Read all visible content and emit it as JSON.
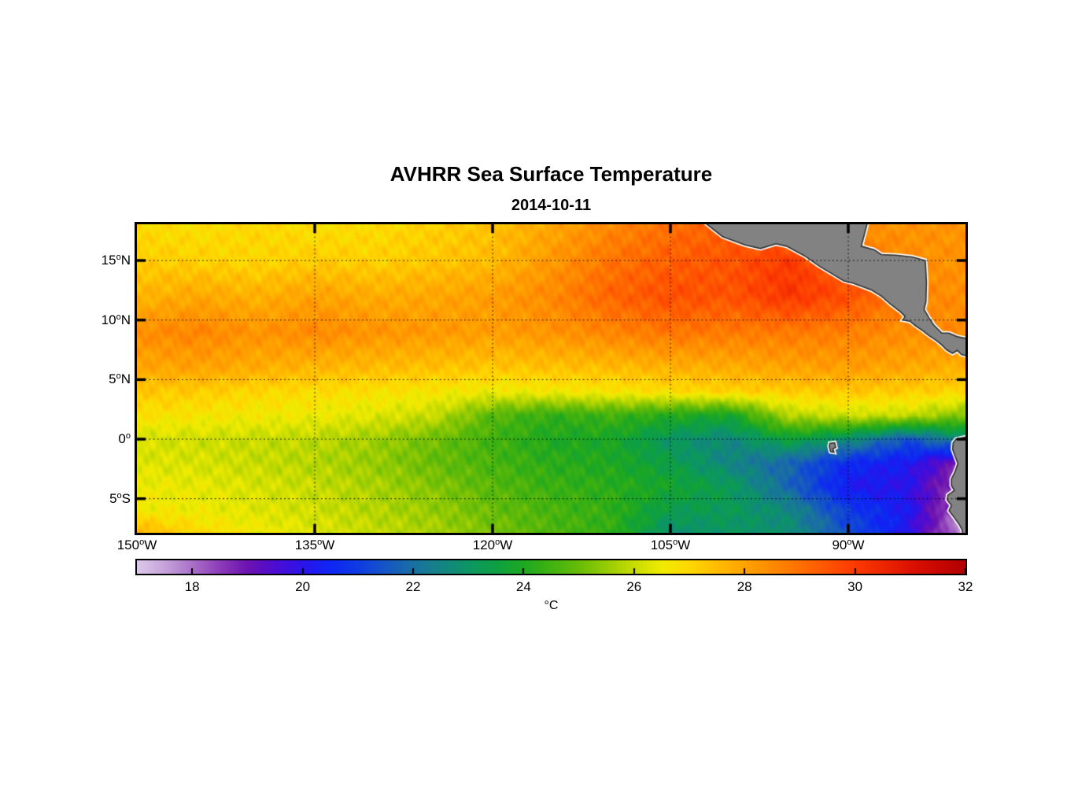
{
  "title": "AVHRR Sea Surface Temperature",
  "subtitle": "2014-10-11",
  "colorbar": {
    "label": "°C",
    "min": 17,
    "max": 32,
    "tick_values": [
      18,
      20,
      22,
      24,
      26,
      28,
      30,
      32
    ],
    "tick_labels": [
      "18",
      "20",
      "22",
      "24",
      "26",
      "28",
      "30",
      "32"
    ]
  },
  "axes": {
    "x_ticks": [
      {
        "value": -150,
        "label": "150°W"
      },
      {
        "value": -135,
        "label": "135°W"
      },
      {
        "value": -120,
        "label": "120°W"
      },
      {
        "value": -105,
        "label": "105°W"
      },
      {
        "value": -90,
        "label": "90°W"
      }
    ],
    "y_ticks": [
      {
        "value": 15,
        "label": "15°N"
      },
      {
        "value": 10,
        "label": "10°N"
      },
      {
        "value": 5,
        "label": "5°N"
      },
      {
        "value": 0,
        "label": "0°"
      },
      {
        "value": -5,
        "label": "5°S"
      }
    ]
  },
  "chart_data": {
    "type": "heatmap",
    "variable": "sea surface temperature",
    "units": "°C",
    "grid_on": true,
    "extent": {
      "lon_min": -150,
      "lon_max": -80.1,
      "lat_min": -7.9,
      "lat_max": 18.04
    },
    "value_range": [
      17,
      32
    ],
    "grid_lons": [
      -150,
      -145,
      -140,
      -135,
      -130,
      -125,
      -120,
      -115,
      -110,
      -105,
      -100,
      -95,
      -90,
      -85,
      -80
    ],
    "grid_lats": [
      18,
      15,
      12,
      9,
      6,
      4,
      2,
      0,
      -2,
      -4,
      -6,
      -8
    ],
    "sst_grid": [
      [
        26.9,
        26.8,
        27.0,
        26.8,
        26.9,
        27.1,
        27.4,
        27.9,
        28.5,
        29.0,
        29.3,
        28.8,
        28.3,
        28.3,
        28.3
      ],
      [
        27.2,
        27.1,
        27.0,
        27.2,
        27.1,
        27.3,
        27.5,
        28.2,
        28.9,
        29.3,
        29.5,
        30.0,
        29.2,
        28.4,
        28.3
      ],
      [
        27.6,
        27.9,
        27.7,
        28.0,
        27.8,
        27.9,
        28.1,
        28.5,
        29.2,
        29.6,
        29.5,
        30.1,
        29.6,
        28.6,
        28.4
      ],
      [
        28.4,
        28.6,
        28.3,
        28.5,
        28.3,
        28.2,
        28.1,
        28.3,
        28.6,
        28.9,
        28.8,
        28.8,
        28.7,
        28.4,
        28.5
      ],
      [
        27.9,
        28.0,
        27.8,
        27.6,
        27.5,
        27.4,
        27.3,
        27.4,
        27.5,
        27.7,
        27.8,
        28.0,
        28.1,
        27.9,
        27.7
      ],
      [
        27.3,
        27.2,
        27.0,
        26.9,
        26.8,
        26.7,
        26.5,
        26.6,
        26.7,
        26.9,
        27.1,
        27.2,
        27.3,
        27.2,
        27.0
      ],
      [
        26.8,
        26.7,
        26.6,
        26.5,
        26.3,
        26.0,
        24.8,
        24.3,
        24.5,
        24.1,
        23.8,
        25.8,
        26.1,
        26.0,
        25.2
      ],
      [
        26.2,
        26.1,
        26.0,
        25.9,
        25.6,
        25.1,
        24.5,
        24.0,
        23.9,
        23.0,
        22.6,
        23.6,
        22.8,
        21.4,
        22.8
      ],
      [
        26.3,
        26.2,
        26.0,
        25.8,
        25.5,
        25.0,
        24.6,
        24.2,
        24.0,
        23.4,
        22.5,
        21.8,
        20.6,
        20.2,
        18.6
      ],
      [
        26.5,
        26.4,
        26.2,
        26.0,
        25.7,
        25.3,
        24.8,
        24.4,
        24.2,
        23.8,
        23.2,
        21.8,
        20.2,
        20.0,
        18.0
      ],
      [
        26.6,
        26.5,
        26.3,
        26.1,
        25.8,
        25.5,
        25.0,
        24.6,
        24.3,
        23.3,
        23.2,
        22.6,
        21.0,
        20.2,
        17.6
      ],
      [
        27.8,
        27.0,
        26.6,
        26.3,
        26.0,
        25.7,
        25.2,
        24.7,
        24.3,
        22.8,
        23.0,
        22.8,
        21.4,
        20.0,
        17.4
      ]
    ],
    "colormap_stops": [
      [
        17.0,
        "#dcc9ec"
      ],
      [
        17.5,
        "#c6a2da"
      ],
      [
        18.0,
        "#aa70c8"
      ],
      [
        18.5,
        "#8c3cb8"
      ],
      [
        19.0,
        "#6c12b0"
      ],
      [
        19.5,
        "#4e0cd2"
      ],
      [
        20.0,
        "#2a14ea"
      ],
      [
        20.5,
        "#0e26f4"
      ],
      [
        21.0,
        "#0e3ce2"
      ],
      [
        21.5,
        "#1656c6"
      ],
      [
        22.0,
        "#1a70a2"
      ],
      [
        22.5,
        "#148484"
      ],
      [
        23.0,
        "#0c9664"
      ],
      [
        23.5,
        "#0ea042"
      ],
      [
        24.0,
        "#1ea822"
      ],
      [
        24.5,
        "#40b210"
      ],
      [
        25.0,
        "#68bc08"
      ],
      [
        25.5,
        "#96cc04"
      ],
      [
        26.0,
        "#c8dc00"
      ],
      [
        26.5,
        "#f0ec00"
      ],
      [
        27.0,
        "#ffd800"
      ],
      [
        27.5,
        "#ffbc00"
      ],
      [
        28.0,
        "#ffa300"
      ],
      [
        28.5,
        "#ff8a00"
      ],
      [
        29.0,
        "#ff7000"
      ],
      [
        29.5,
        "#ff5400"
      ],
      [
        30.0,
        "#fc3a00"
      ],
      [
        30.5,
        "#ee2600"
      ],
      [
        31.0,
        "#dd1200"
      ],
      [
        31.5,
        "#c90600"
      ],
      [
        32.0,
        "#b00000"
      ]
    ],
    "land_color": "#828282",
    "coast_outline_color": "#2f2f2f",
    "coast_fringe_color": "#ffffff",
    "land_polygons": {
      "central_america": [
        [
          -102.0,
          18.1
        ],
        [
          -100.6,
          17.0
        ],
        [
          -98.7,
          16.3
        ],
        [
          -97.4,
          16.0
        ],
        [
          -96.1,
          16.4
        ],
        [
          -95.2,
          16.2
        ],
        [
          -93.7,
          15.4
        ],
        [
          -92.4,
          14.5
        ],
        [
          -91.4,
          13.9
        ],
        [
          -90.4,
          13.3
        ],
        [
          -89.6,
          13.1
        ],
        [
          -88.8,
          12.8
        ],
        [
          -88.0,
          12.5
        ],
        [
          -87.2,
          12.0
        ],
        [
          -86.4,
          11.3
        ],
        [
          -85.6,
          10.7
        ],
        [
          -85.2,
          10.3
        ],
        [
          -85.4,
          10.0
        ],
        [
          -84.8,
          9.9
        ],
        [
          -84.3,
          9.5
        ],
        [
          -83.7,
          9.1
        ],
        [
          -83.2,
          8.7
        ],
        [
          -82.6,
          8.3
        ],
        [
          -82.1,
          7.9
        ],
        [
          -81.7,
          7.5
        ],
        [
          -81.2,
          7.2
        ],
        [
          -80.8,
          7.45
        ],
        [
          -80.45,
          7.1
        ],
        [
          -80.0,
          7.0
        ],
        [
          -80.0,
          8.45
        ],
        [
          -80.8,
          8.6
        ],
        [
          -81.5,
          8.9
        ],
        [
          -82.1,
          8.9
        ],
        [
          -82.8,
          9.6
        ],
        [
          -83.2,
          10.2
        ],
        [
          -83.6,
          10.9
        ],
        [
          -83.45,
          11.5
        ],
        [
          -83.4,
          13.2
        ],
        [
          -83.5,
          15.0
        ],
        [
          -84.6,
          15.3
        ],
        [
          -86.0,
          15.45
        ],
        [
          -87.2,
          15.5
        ],
        [
          -87.8,
          15.9
        ],
        [
          -88.9,
          16.2
        ],
        [
          -88.4,
          18.1
        ]
      ],
      "south_america": [
        [
          -80.0,
          0.2
        ],
        [
          -80.9,
          0.0
        ],
        [
          -81.15,
          -0.3
        ],
        [
          -81.2,
          -0.85
        ],
        [
          -81.0,
          -1.4
        ],
        [
          -80.75,
          -2.05
        ],
        [
          -81.0,
          -2.75
        ],
        [
          -81.3,
          -3.35
        ],
        [
          -81.3,
          -3.9
        ],
        [
          -81.05,
          -4.3
        ],
        [
          -81.6,
          -4.7
        ],
        [
          -81.65,
          -5.1
        ],
        [
          -81.3,
          -5.55
        ],
        [
          -81.5,
          -6.0
        ],
        [
          -81.05,
          -6.6
        ],
        [
          -80.65,
          -7.15
        ],
        [
          -80.4,
          -7.6
        ],
        [
          -80.35,
          -8.0
        ],
        [
          -80.0,
          -8.0
        ]
      ],
      "galapagos": [
        [
          -91.55,
          -0.35
        ],
        [
          -91.15,
          -0.3
        ],
        [
          -91.05,
          -0.7
        ],
        [
          -91.3,
          -0.8
        ],
        [
          -91.2,
          -1.1
        ],
        [
          -91.5,
          -1.05
        ],
        [
          -91.6,
          -0.6
        ]
      ]
    }
  }
}
